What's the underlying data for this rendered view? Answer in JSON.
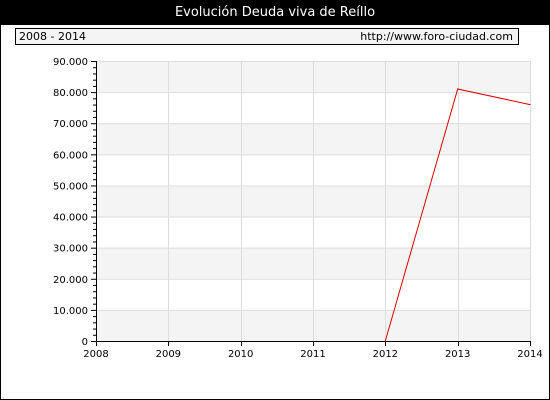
{
  "header": {
    "title": "Evolución Deuda viva de Reíllo",
    "range_label": "2008 - 2014",
    "source_url": "http://www.foro-ciudad.com"
  },
  "colors": {
    "series": "#e00000",
    "band": "#f4f4f4",
    "grid": "#dddddd"
  },
  "chart_data": {
    "type": "line",
    "title": "Evolución Deuda viva de Reíllo",
    "xlabel": "",
    "ylabel": "",
    "x": [
      2008,
      2009,
      2010,
      2011,
      2012,
      2013,
      2014
    ],
    "x_tick_labels": [
      "2008",
      "2009",
      "2010",
      "2011",
      "2012",
      "2013",
      "2014"
    ],
    "y_tick_values": [
      0,
      10000,
      20000,
      30000,
      40000,
      50000,
      60000,
      70000,
      80000,
      90000
    ],
    "y_tick_labels": [
      "0",
      "10.000",
      "20.000",
      "30.000",
      "40.000",
      "50.000",
      "60.000",
      "70.000",
      "80.000",
      "90.000"
    ],
    "ylim": [
      0,
      90000
    ],
    "xlim": [
      2008,
      2014
    ],
    "grid": true,
    "series": [
      {
        "points": [
          {
            "x": 2012,
            "y": 0
          },
          {
            "x": 2013,
            "y": 81000
          },
          {
            "x": 2014,
            "y": 76000
          }
        ]
      }
    ]
  }
}
